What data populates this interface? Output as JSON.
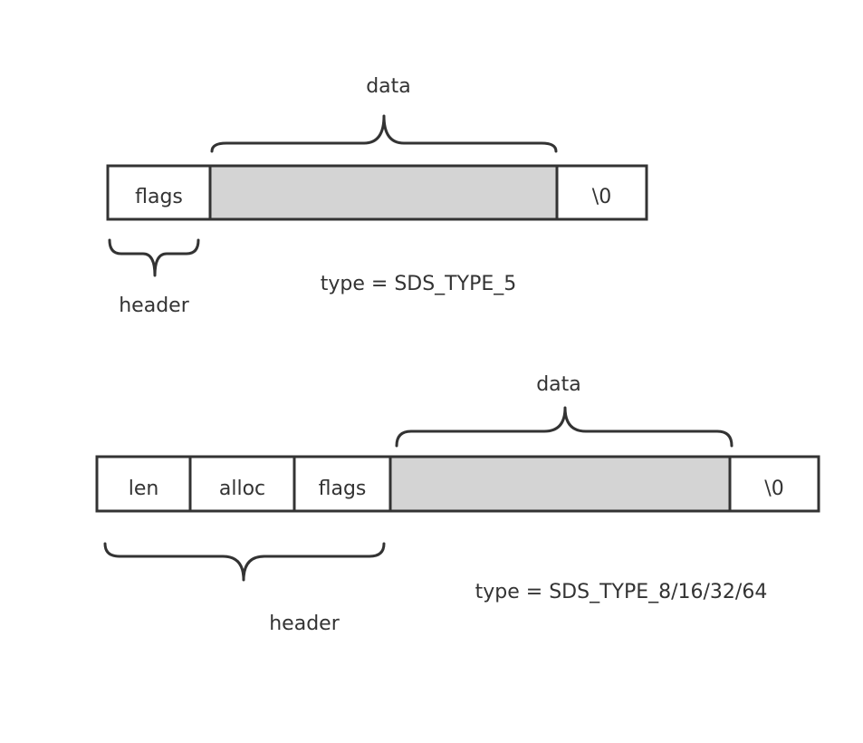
{
  "diagram1": {
    "fields": [
      "flags"
    ],
    "data_label": "data",
    "terminator": "\\0",
    "header_label": "header",
    "type_label": "type = SDS_TYPE_5"
  },
  "diagram2": {
    "fields": [
      "len",
      "alloc",
      "flags"
    ],
    "data_label": "data",
    "terminator": "\\0",
    "header_label": "header",
    "type_label": "type = SDS_TYPE_8/16/32/64"
  },
  "colors": {
    "stroke": "#333333",
    "data_fill": "#d4d4d4",
    "cell_fill": "#ffffff"
  }
}
